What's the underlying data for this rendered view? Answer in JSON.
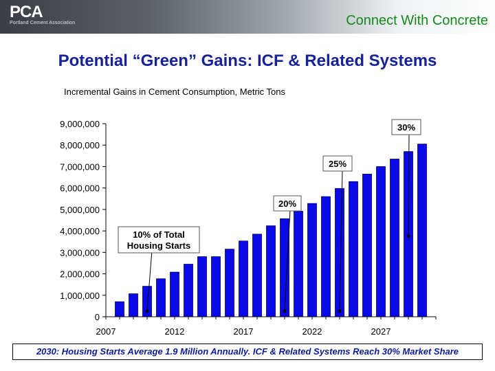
{
  "header": {
    "logo_text": "PCA",
    "logo_subtext": "Portland Cement Association",
    "tagline": "Connect With Concrete"
  },
  "slide": {
    "title": "Potential “Green” Gains: ICF & Related Systems",
    "subtitle": "Incremental Gains in Cement Consumption, Metric Tons",
    "footer": "2030: Housing Starts Average 1.9 Million Annually.  ICF & Related Systems Reach 30% Market Share"
  },
  "colors": {
    "bar": "#0a0ae6",
    "bar_edge": "#00006e",
    "title": "#17229a",
    "tagline": "#158a1a"
  },
  "chart_data": {
    "type": "bar",
    "x": [
      2008,
      2009,
      2010,
      2011,
      2012,
      2013,
      2014,
      2015,
      2016,
      2017,
      2018,
      2019,
      2020,
      2021,
      2022,
      2023,
      2024,
      2025,
      2026,
      2027,
      2028,
      2029,
      2030
    ],
    "values": [
      700000,
      1070000,
      1420000,
      1770000,
      2080000,
      2450000,
      2800000,
      2800000,
      3150000,
      3530000,
      3850000,
      4240000,
      4570000,
      4920000,
      5280000,
      5600000,
      5980000,
      6300000,
      6650000,
      7000000,
      7350000,
      7700000,
      8050000
    ],
    "x_ticks": [
      "2007",
      "2012",
      "2017",
      "2022",
      "2027"
    ],
    "y_ticks": [
      "0",
      "1,000,000",
      "2,000,000",
      "3,000,000",
      "4,000,000",
      "5,000,000",
      "6,000,000",
      "7,000,000",
      "8,000,000",
      "9,000,000"
    ],
    "ylim": [
      0,
      9000000
    ],
    "xlim": [
      2007,
      2031
    ],
    "grid": false,
    "annotations": [
      {
        "label_lines": [
          "10%  of Total",
          "Housing Starts"
        ],
        "x": 2010,
        "y": 0
      },
      {
        "label_lines": [
          "20%"
        ],
        "x": 2020,
        "y": 0
      },
      {
        "label_lines": [
          "25%"
        ],
        "x": 2024,
        "y": 0
      },
      {
        "label_lines": [
          "30%"
        ],
        "x": 2029,
        "y": 3500000
      }
    ]
  }
}
